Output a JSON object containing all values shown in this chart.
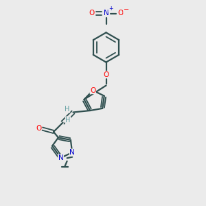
{
  "bg_color": "#ebebeb",
  "bond_color": "#2f4f4f",
  "oxygen_color": "#ff0000",
  "nitrogen_color": "#0000cd",
  "h_color": "#5f9ea0",
  "figsize": [
    3.0,
    3.0
  ],
  "dpi": 100,
  "xlim": [
    0,
    10
  ],
  "ylim": [
    0,
    10
  ]
}
